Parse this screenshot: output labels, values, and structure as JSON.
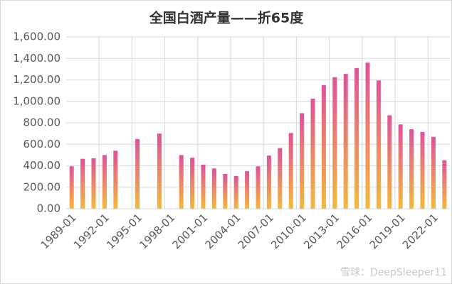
{
  "chart_data": {
    "type": "bar",
    "title": "全国白酒产量——折65度",
    "watermark": "雪球：DeepSleeper11",
    "categories": [
      "1989-01",
      null,
      null,
      "1992-01",
      null,
      null,
      "1995-01",
      null,
      null,
      "1998-01",
      null,
      null,
      "2001-01",
      null,
      null,
      "2004-01",
      null,
      null,
      "2007-01",
      null,
      null,
      "2010-01",
      null,
      null,
      "2013-01",
      null,
      null,
      "2016-01",
      null,
      null,
      "2019-01",
      null,
      null,
      "2022-01",
      null
    ],
    "values": [
      395,
      465,
      470,
      500,
      540,
      null,
      650,
      null,
      700,
      null,
      500,
      475,
      410,
      375,
      325,
      305,
      350,
      395,
      495,
      565,
      705,
      890,
      1025,
      1150,
      1225,
      1255,
      1310,
      1360,
      1195,
      870,
      785,
      740,
      715,
      670,
      450
    ],
    "color_top": "#e0529a",
    "color_bottom": "#f5b93a",
    "ylim": [
      0,
      1600
    ],
    "yticks": [
      {
        "value": 0,
        "label": "0.00"
      },
      {
        "value": 200,
        "label": "200.00"
      },
      {
        "value": 400,
        "label": "400.00"
      },
      {
        "value": 600,
        "label": "600.00"
      },
      {
        "value": 800,
        "label": "800.00"
      },
      {
        "value": 1000,
        "label": "1,000.00"
      },
      {
        "value": 1200,
        "label": "1,200.00"
      },
      {
        "value": 1400,
        "label": "1,400.00"
      },
      {
        "value": 1600,
        "label": "1,600.00"
      }
    ],
    "grid": true
  }
}
